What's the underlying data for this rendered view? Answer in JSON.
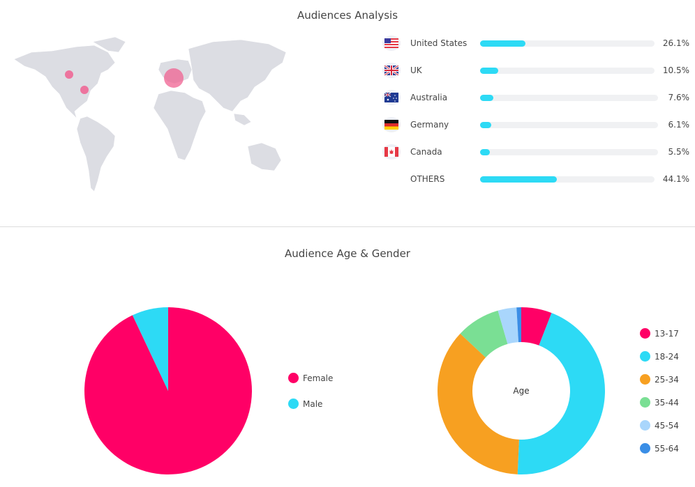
{
  "audiences": {
    "title": "Audiences Analysis",
    "countries": [
      {
        "name": "United States",
        "value": 26.1,
        "label": "26.1%",
        "flag": "us-flag"
      },
      {
        "name": "UK",
        "value": 10.5,
        "label": "10.5%",
        "flag": "uk-flag"
      },
      {
        "name": "Australia",
        "value": 7.6,
        "label": "7.6%",
        "flag": "australia-flag"
      },
      {
        "name": "Germany",
        "value": 6.1,
        "label": "6.1%",
        "flag": "germany-flag"
      },
      {
        "name": "Canada",
        "value": 5.5,
        "label": "5.5%",
        "flag": "canada-flag"
      },
      {
        "name": "OTHERS",
        "value": 44.1,
        "label": "44.1%",
        "flag": ""
      }
    ],
    "bar_color": "#2ddaf5",
    "map_bubble_color": "#f06292"
  },
  "age_gender": {
    "title": "Audience Age & Gender"
  },
  "chart_data": [
    {
      "type": "pie",
      "categories": [
        "Female",
        "Male"
      ],
      "values": [
        93,
        7
      ],
      "colors": [
        "#ff0066",
        "#2ddaf5"
      ],
      "legend": "right"
    },
    {
      "type": "pie",
      "donut": true,
      "center_label": "Age",
      "categories": [
        "13-17",
        "18-24",
        "25-34",
        "35-44",
        "45-54",
        "55-64"
      ],
      "values": [
        5.9,
        44.8,
        36.3,
        8.5,
        3.6,
        0.9
      ],
      "colors": [
        "#ff0066",
        "#2ddaf5",
        "#f7a021",
        "#7adf94",
        "#a9d6fc",
        "#3a8ee6"
      ],
      "legend": "right"
    }
  ]
}
